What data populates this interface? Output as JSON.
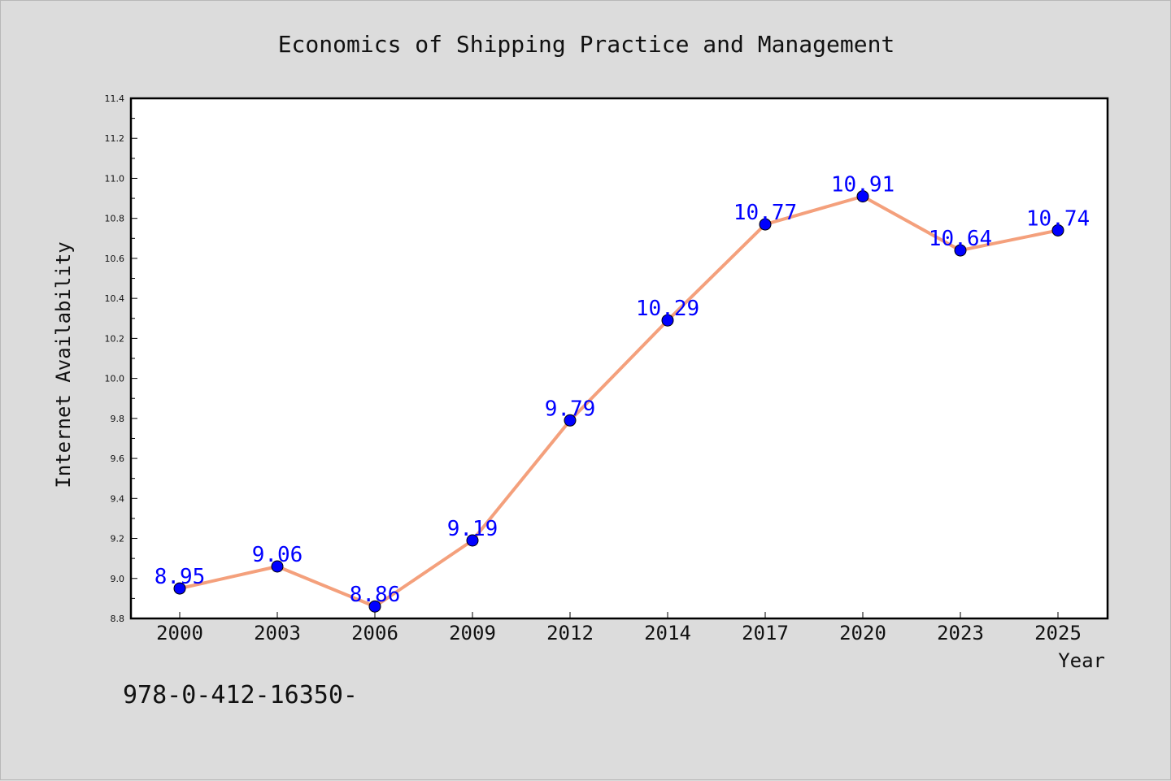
{
  "chart_data": {
    "type": "line",
    "title": "Economics of Shipping Practice and Management",
    "xlabel": "Year",
    "ylabel": "Internet Availability",
    "categories": [
      "2000",
      "2003",
      "2006",
      "2009",
      "2012",
      "2014",
      "2017",
      "2020",
      "2023",
      "2025"
    ],
    "series": [
      {
        "values": [
          8.95,
          9.06,
          8.86,
          9.19,
          9.79,
          10.29,
          10.77,
          10.91,
          10.64,
          10.74
        ],
        "labels": [
          "8.95",
          "9.06",
          "8.86",
          "9.19",
          "9.79",
          "10.29",
          "10.77",
          "10.91",
          "10.64",
          "10.74"
        ],
        "line_color": "#f4a07c",
        "marker_color": "#0000ff",
        "label_color": "#0000ff"
      }
    ],
    "ylim": [
      8.8,
      11.4
    ],
    "yticks": [
      "8.8",
      "9.0",
      "9.2",
      "9.4",
      "9.6",
      "9.8",
      "10.0",
      "10.2",
      "10.4",
      "10.6",
      "10.8",
      "11.0",
      "11.2",
      "11.4"
    ],
    "grid": false,
    "legend": "none"
  },
  "footer_text": "978-0-412-16350-"
}
